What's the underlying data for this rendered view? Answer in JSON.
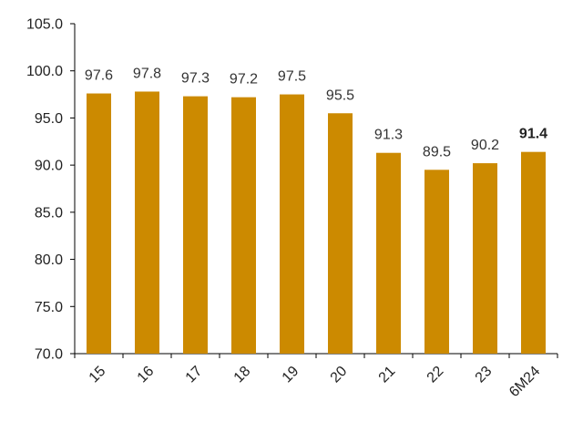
{
  "chart_data": {
    "type": "bar",
    "categories": [
      "15",
      "16",
      "17",
      "18",
      "19",
      "20",
      "21",
      "22",
      "23",
      "6M24"
    ],
    "values": [
      97.6,
      97.8,
      97.3,
      97.2,
      97.5,
      95.5,
      91.3,
      89.5,
      90.2,
      91.4
    ],
    "data_labels": [
      "97.6",
      "97.8",
      "97.3",
      "97.2",
      "97.5",
      "95.5",
      "91.3",
      "89.5",
      "90.2",
      "91.4"
    ],
    "highlight_index": 9,
    "title": "",
    "xlabel": "",
    "ylabel": "",
    "ylim": [
      70.0,
      105.0
    ],
    "yticks": [
      "70.0",
      "75.0",
      "80.0",
      "85.0",
      "90.0",
      "95.0",
      "100.0",
      "105.0"
    ],
    "grid": false,
    "legend": "none",
    "bar_color": "#CC8A00"
  }
}
